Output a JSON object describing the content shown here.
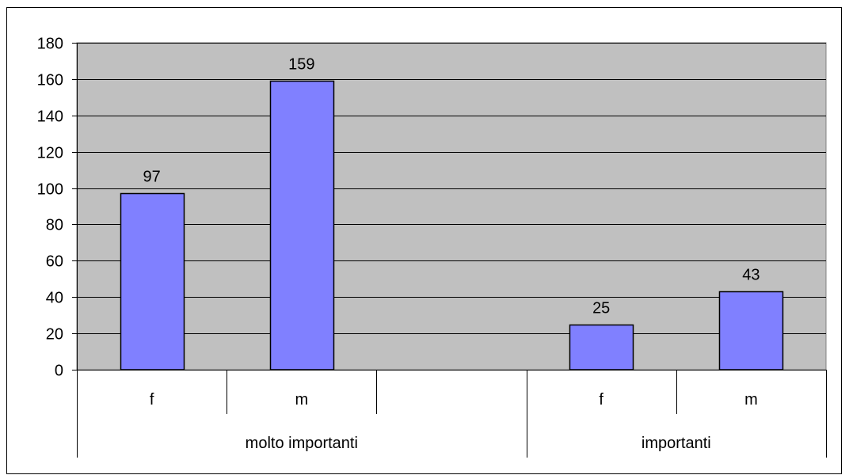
{
  "chart_data": {
    "type": "bar",
    "groups": [
      {
        "label": "molto importanti",
        "categories": [
          "f",
          "m",
          ""
        ],
        "values": [
          97,
          159,
          null
        ]
      },
      {
        "label": "importanti",
        "categories": [
          "f",
          "m"
        ],
        "values": [
          25,
          43
        ]
      }
    ],
    "categories": [
      "f",
      "m",
      "",
      "f",
      "m"
    ],
    "values": [
      97,
      159,
      null,
      25,
      43
    ],
    "data_labels": [
      "97",
      "159",
      "",
      "25",
      "43"
    ],
    "title": "",
    "xlabel": "",
    "ylabel": "",
    "ylim": [
      0,
      180
    ],
    "yticks": [
      0,
      20,
      40,
      60,
      80,
      100,
      120,
      140,
      160,
      180
    ],
    "grid": true,
    "legend": "none"
  },
  "colors": {
    "plot_background": "#c0c0c0",
    "bar_fill": "#8080ff",
    "bar_stroke": "#000000",
    "gridline": "#000000",
    "page_background": "#ffffff"
  }
}
